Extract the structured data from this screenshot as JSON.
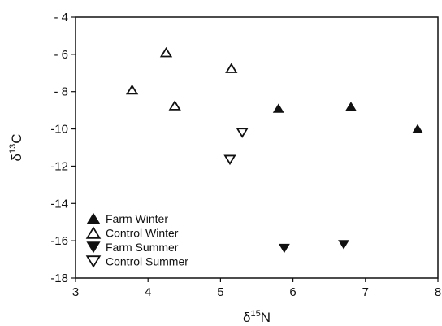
{
  "chart_data": {
    "type": "scatter",
    "title": "",
    "xlabel": {
      "main": "δ",
      "sup": "15",
      "tail": "N"
    },
    "ylabel": {
      "main": "δ",
      "sup": "13",
      "tail": "C"
    },
    "xlim": [
      3,
      8
    ],
    "ylim": [
      -18,
      -4
    ],
    "x_ticks": [
      3,
      4,
      5,
      6,
      7,
      8
    ],
    "x_tick_labels": [
      "3",
      "4",
      "5",
      "6",
      "7",
      "8"
    ],
    "y_ticks": [
      -4,
      -6,
      -8,
      -10,
      -12,
      -14,
      -16,
      -18
    ],
    "y_tick_labels": [
      "- 4",
      "- 6",
      "- 8",
      "-10",
      "-12",
      "-14",
      "-16",
      "-18"
    ],
    "grid": false,
    "legend_position": "bottom-left",
    "series": [
      {
        "name": "Farm Winter",
        "marker": "triangle-up",
        "filled": true,
        "points": [
          {
            "x": 5.8,
            "y": -8.9
          },
          {
            "x": 6.8,
            "y": -8.8
          },
          {
            "x": 7.72,
            "y": -10.0
          }
        ]
      },
      {
        "name": "Control Winter",
        "marker": "triangle-up",
        "filled": false,
        "points": [
          {
            "x": 3.78,
            "y": -7.9
          },
          {
            "x": 4.25,
            "y": -5.9
          },
          {
            "x": 4.37,
            "y": -8.75
          },
          {
            "x": 5.15,
            "y": -6.75
          }
        ]
      },
      {
        "name": "Farm Summer",
        "marker": "triangle-down",
        "filled": true,
        "points": [
          {
            "x": 5.88,
            "y": -16.4
          },
          {
            "x": 6.7,
            "y": -16.2
          }
        ]
      },
      {
        "name": "Control Summer",
        "marker": "triangle-down",
        "filled": false,
        "points": [
          {
            "x": 5.13,
            "y": -11.65
          },
          {
            "x": 5.3,
            "y": -10.2
          }
        ]
      }
    ]
  }
}
